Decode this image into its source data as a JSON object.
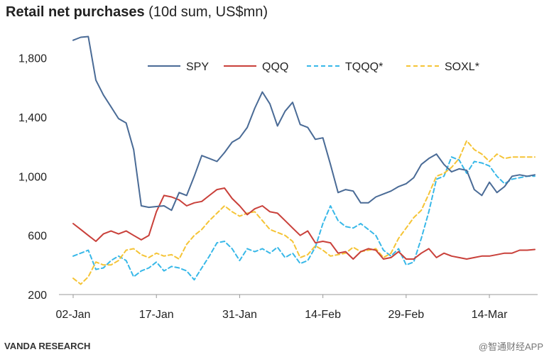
{
  "header": {
    "title_bold": "Retail net purchases",
    "title_rest": " (10d sum, US$mn)"
  },
  "footer": {
    "source": "VANDA RESEARCH",
    "watermark": "@智通财经APP"
  },
  "chart_data": {
    "type": "line",
    "title": "Retail net purchases (10d sum, US$mn)",
    "xlabel": "",
    "ylabel": "",
    "ylim": [
      200,
      2000
    ],
    "yticks": [
      200,
      600,
      1000,
      1400,
      1800
    ],
    "ytick_labels": [
      "200",
      "600",
      "1,000",
      "1,400",
      "1,800"
    ],
    "x_tick_positions": [
      0,
      11,
      22,
      33,
      44,
      55
    ],
    "x_tick_labels": [
      "02-Jan",
      "17-Jan",
      "31-Jan",
      "14-Feb",
      "29-Feb",
      "14-Mar"
    ],
    "x_count": 62,
    "grid": false,
    "legend_position": "top-right",
    "series": [
      {
        "name": "SPY",
        "color": "#4a6b96",
        "dash": "solid",
        "values": [
          1920,
          1940,
          1945,
          1650,
          1550,
          1470,
          1390,
          1360,
          1180,
          800,
          790,
          795,
          800,
          770,
          890,
          870,
          1000,
          1140,
          1120,
          1100,
          1160,
          1230,
          1260,
          1330,
          1460,
          1570,
          1490,
          1340,
          1440,
          1500,
          1350,
          1330,
          1250,
          1260,
          1080,
          890,
          910,
          900,
          820,
          820,
          860,
          880,
          900,
          930,
          950,
          990,
          1080,
          1120,
          1150,
          1080,
          1030,
          1050,
          1040,
          910,
          870,
          960,
          890,
          930,
          1000,
          1010,
          1000,
          1010
        ]
      },
      {
        "name": "QQQ",
        "color": "#c9403a",
        "dash": "solid",
        "values": [
          680,
          640,
          600,
          560,
          610,
          630,
          610,
          630,
          600,
          570,
          600,
          760,
          870,
          860,
          840,
          800,
          820,
          830,
          870,
          910,
          920,
          850,
          800,
          740,
          780,
          800,
          760,
          750,
          700,
          650,
          600,
          630,
          550,
          560,
          550,
          480,
          490,
          440,
          490,
          510,
          500,
          440,
          450,
          490,
          440,
          440,
          480,
          510,
          450,
          480,
          460,
          450,
          440,
          450,
          460,
          460,
          470,
          480,
          480,
          500,
          500,
          505
        ]
      },
      {
        "name": "TQQQ*",
        "color": "#38b8e8",
        "dash": "dashed",
        "values": [
          460,
          480,
          500,
          370,
          380,
          430,
          460,
          430,
          320,
          360,
          380,
          420,
          360,
          390,
          380,
          360,
          300,
          380,
          460,
          550,
          560,
          510,
          430,
          510,
          490,
          510,
          480,
          520,
          450,
          480,
          410,
          430,
          520,
          680,
          800,
          700,
          660,
          650,
          680,
          640,
          600,
          500,
          460,
          510,
          400,
          420,
          580,
          760,
          980,
          1000,
          1130,
          1110,
          1020,
          1100,
          1090,
          1070,
          1000,
          950,
          980,
          990,
          1000,
          1000
        ]
      },
      {
        "name": "SOXL*",
        "color": "#f5c436",
        "dash": "dashed",
        "values": [
          310,
          270,
          320,
          420,
          400,
          400,
          430,
          500,
          510,
          470,
          450,
          480,
          460,
          470,
          440,
          540,
          600,
          640,
          700,
          750,
          800,
          760,
          730,
          750,
          760,
          700,
          640,
          620,
          600,
          560,
          450,
          470,
          530,
          500,
          460,
          470,
          480,
          520,
          490,
          500,
          510,
          450,
          480,
          580,
          650,
          720,
          770,
          880,
          1000,
          1020,
          1060,
          1120,
          1240,
          1180,
          1150,
          1100,
          1150,
          1120,
          1130,
          1130,
          1130,
          1130
        ]
      }
    ]
  }
}
